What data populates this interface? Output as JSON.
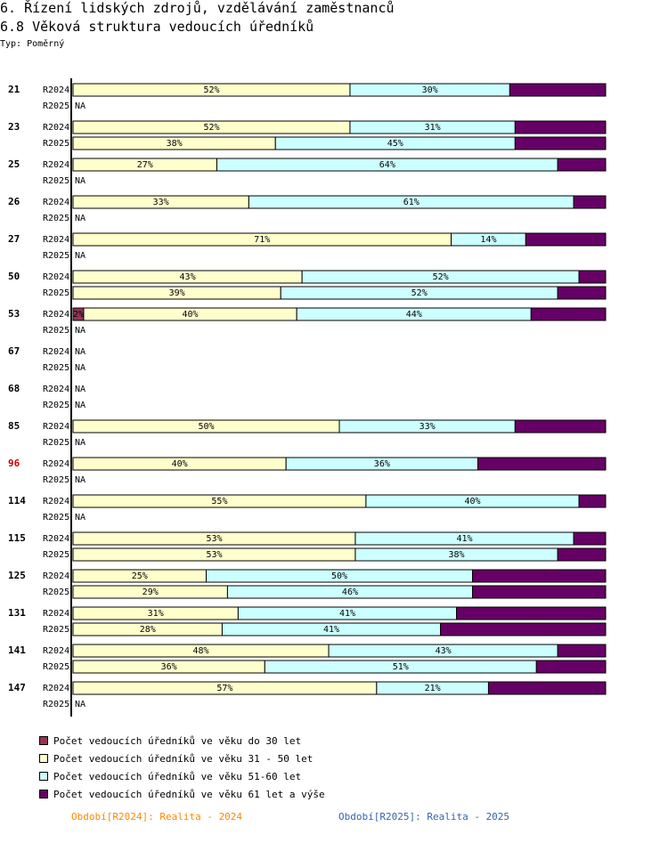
{
  "header": {
    "title": "6. Řízení lidských zdrojů, vzdělávání zaměstnanců",
    "subtitle": "6.8 Věková struktura vedoucích úředníků",
    "type_label": "Typ: Poměrný"
  },
  "colors": {
    "seg0": "#993355",
    "seg1": "#ffffcc",
    "seg2": "#ccffff",
    "seg3": "#660066",
    "text_dark": "#000000",
    "text_light": "#660066",
    "highlight_group": "#cc0000",
    "period_r2024": "#ff8800",
    "period_r2025": "#3366aa"
  },
  "chart_data": {
    "type": "bar",
    "orientation": "horizontal",
    "stacked": true,
    "percent": true,
    "legend": [
      "Počet vedoucích úředníků ve věku do 30 let",
      "Počet vedoucích úředníků ve věku 31 - 50 let",
      "Počet vedoucích úředníků ve věku 51-60 let",
      "Počet vedoucích úředníků ve věku 61 let a výše"
    ],
    "na_label": "NA",
    "groups": [
      {
        "label": "21",
        "rows": [
          {
            "period": "R2024",
            "values": [
              0,
              52,
              30,
              18
            ]
          },
          {
            "period": "R2025",
            "values": null
          }
        ]
      },
      {
        "label": "23",
        "rows": [
          {
            "period": "R2024",
            "values": [
              0,
              52,
              31,
              17
            ]
          },
          {
            "period": "R2025",
            "values": [
              0,
              38,
              45,
              17
            ]
          }
        ]
      },
      {
        "label": "25",
        "rows": [
          {
            "period": "R2024",
            "values": [
              0,
              27,
              64,
              9
            ]
          },
          {
            "period": "R2025",
            "values": null
          }
        ]
      },
      {
        "label": "26",
        "rows": [
          {
            "period": "R2024",
            "values": [
              0,
              33,
              61,
              6
            ]
          },
          {
            "period": "R2025",
            "values": null
          }
        ]
      },
      {
        "label": "27",
        "rows": [
          {
            "period": "R2024",
            "values": [
              0,
              71,
              14,
              15
            ]
          },
          {
            "period": "R2025",
            "values": null
          }
        ]
      },
      {
        "label": "50",
        "rows": [
          {
            "period": "R2024",
            "values": [
              0,
              43,
              52,
              5
            ]
          },
          {
            "period": "R2025",
            "values": [
              0,
              39,
              52,
              9
            ]
          }
        ]
      },
      {
        "label": "53",
        "rows": [
          {
            "period": "R2024",
            "values": [
              2,
              40,
              44,
              14
            ]
          },
          {
            "period": "R2025",
            "values": null
          }
        ]
      },
      {
        "label": "67",
        "rows": [
          {
            "period": "R2024",
            "values": null
          },
          {
            "period": "R2025",
            "values": null
          }
        ]
      },
      {
        "label": "68",
        "rows": [
          {
            "period": "R2024",
            "values": null
          },
          {
            "period": "R2025",
            "values": null
          }
        ]
      },
      {
        "label": "85",
        "rows": [
          {
            "period": "R2024",
            "values": [
              0,
              50,
              33,
              17
            ]
          },
          {
            "period": "R2025",
            "values": null
          }
        ]
      },
      {
        "label": "96",
        "highlight": true,
        "rows": [
          {
            "period": "R2024",
            "values": [
              0,
              40,
              36,
              24
            ]
          },
          {
            "period": "R2025",
            "values": null
          }
        ]
      },
      {
        "label": "114",
        "rows": [
          {
            "period": "R2024",
            "values": [
              0,
              55,
              40,
              5
            ]
          },
          {
            "period": "R2025",
            "values": null
          }
        ]
      },
      {
        "label": "115",
        "rows": [
          {
            "period": "R2024",
            "values": [
              0,
              53,
              41,
              6
            ]
          },
          {
            "period": "R2025",
            "values": [
              0,
              53,
              38,
              9
            ]
          }
        ]
      },
      {
        "label": "125",
        "rows": [
          {
            "period": "R2024",
            "values": [
              0,
              25,
              50,
              25
            ]
          },
          {
            "period": "R2025",
            "values": [
              0,
              29,
              46,
              25
            ]
          }
        ]
      },
      {
        "label": "131",
        "rows": [
          {
            "period": "R2024",
            "values": [
              0,
              31,
              41,
              28
            ]
          },
          {
            "period": "R2025",
            "values": [
              0,
              28,
              41,
              31
            ]
          }
        ]
      },
      {
        "label": "141",
        "rows": [
          {
            "period": "R2024",
            "values": [
              0,
              48,
              43,
              9
            ]
          },
          {
            "period": "R2025",
            "values": [
              0,
              36,
              51,
              13
            ]
          }
        ]
      },
      {
        "label": "147",
        "rows": [
          {
            "period": "R2024",
            "values": [
              0,
              57,
              21,
              22
            ]
          },
          {
            "period": "R2025",
            "values": null
          }
        ]
      }
    ]
  },
  "periods": {
    "r2024": "Období[R2024]: Realita - 2024",
    "r2025": "Období[R2025]: Realita - 2025"
  }
}
